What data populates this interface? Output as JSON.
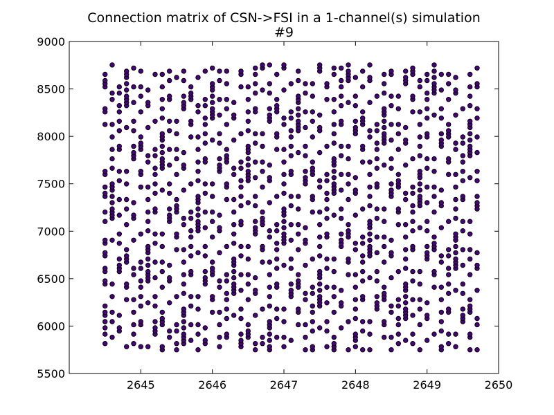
{
  "chart_data": {
    "type": "scatter",
    "title": "Connection matrix of CSN->FSI in a 1-channel(s) simulation",
    "subtitle": "#9",
    "xlabel": "",
    "ylabel": "",
    "xlim": [
      2644,
      2650
    ],
    "ylim": [
      5500,
      9000
    ],
    "xticks": [
      2645,
      2646,
      2647,
      2648,
      2649,
      2650
    ],
    "xtick_labels": [
      "2645",
      "2646",
      "2647",
      "2648",
      "2649",
      "2650"
    ],
    "yticks": [
      5500,
      6000,
      6500,
      7000,
      7500,
      8000,
      8500,
      9000
    ],
    "ytick_labels": [
      "5500",
      "6000",
      "6500",
      "7000",
      "7500",
      "8000",
      "8500",
      "9000"
    ],
    "grid": false,
    "marker_color": "#4b0082",
    "x_min": 2644.5,
    "x_max": 2649.7,
    "x_step": 0.1,
    "y_min": 5750,
    "y_max": 8750,
    "y_step": 33,
    "x_values_note": "",
    "point_density": 0.33
  }
}
